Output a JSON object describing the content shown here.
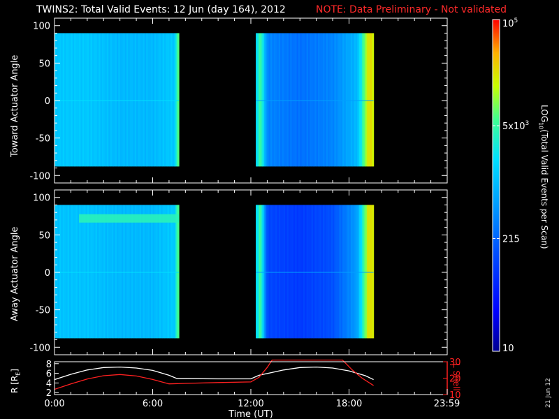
{
  "title": {
    "main": "TWINS2: Total Valid Events: 12 Jun (day 164), 2012",
    "note": "NOTE: Data Preliminary - Not validated"
  },
  "colors": {
    "background": "#000000",
    "axes": "#ffffff",
    "note": "#ff2a2a",
    "lshell": "#ff2020",
    "radius": "#ffffff"
  },
  "chart_data": [
    {
      "type": "heatmap",
      "panel": "top",
      "ylabel": "Toward Actuator Angle",
      "ylim": [
        -110,
        110
      ],
      "yticks": [
        -100,
        -50,
        0,
        50,
        100
      ],
      "xlim": [
        0,
        24
      ],
      "data_segments": [
        [
          0,
          7.6
        ],
        [
          12.3,
          19.5
        ]
      ],
      "data_angle_range": [
        -88,
        90
      ],
      "level_profile": [
        {
          "t": 0.0,
          "level": 0.53
        },
        {
          "t": 2.0,
          "level": 0.53
        },
        {
          "t": 4.0,
          "level": 0.5
        },
        {
          "t": 6.0,
          "level": 0.5
        },
        {
          "t": 7.4,
          "level": 0.54
        },
        {
          "t": 7.5,
          "level": 0.72
        },
        {
          "t": 12.3,
          "level": 0.55
        },
        {
          "t": 12.6,
          "level": 0.7
        },
        {
          "t": 13.0,
          "level": 0.4
        },
        {
          "t": 15.0,
          "level": 0.36
        },
        {
          "t": 17.0,
          "level": 0.4
        },
        {
          "t": 18.5,
          "level": 0.5
        },
        {
          "t": 19.2,
          "level": 0.85
        },
        {
          "t": 19.5,
          "level": 0.82
        }
      ]
    },
    {
      "type": "heatmap",
      "panel": "middle",
      "ylabel": "Away Actuator Angle",
      "ylim": [
        -110,
        110
      ],
      "yticks": [
        -100,
        -50,
        0,
        50,
        100
      ],
      "xlim": [
        0,
        24
      ],
      "data_segments": [
        [
          0,
          7.6
        ],
        [
          12.3,
          19.5
        ]
      ],
      "data_angle_range": [
        -88,
        90
      ],
      "level_profile": [
        {
          "t": 0.0,
          "level": 0.52
        },
        {
          "t": 2.0,
          "level": 0.52
        },
        {
          "t": 4.0,
          "level": 0.5
        },
        {
          "t": 6.0,
          "level": 0.5
        },
        {
          "t": 7.4,
          "level": 0.54
        },
        {
          "t": 7.5,
          "level": 0.72
        },
        {
          "t": 12.3,
          "level": 0.55
        },
        {
          "t": 12.6,
          "level": 0.7
        },
        {
          "t": 13.0,
          "level": 0.28
        },
        {
          "t": 15.0,
          "level": 0.25
        },
        {
          "t": 17.0,
          "level": 0.3
        },
        {
          "t": 18.5,
          "level": 0.45
        },
        {
          "t": 19.2,
          "level": 0.85
        },
        {
          "t": 19.5,
          "level": 0.82
        }
      ],
      "band_feature": {
        "angle": 72,
        "t_range": [
          1.5,
          7.6
        ],
        "level": 0.66
      }
    },
    {
      "type": "line",
      "panel": "bottom",
      "xlabel": "Time (UT)",
      "x_ticks": [
        "0:00",
        "6:00",
        "12:00",
        "18:00",
        "23:59"
      ],
      "x_tick_values": [
        0,
        6,
        12,
        18,
        23.98
      ],
      "xlim": [
        0,
        24
      ],
      "ylabel_left": "R [RE]",
      "ylim_left": [
        1.6,
        8.4
      ],
      "yticks_left": [
        2,
        4,
        6,
        8
      ],
      "ylabel_right": "L Shell",
      "ylim_right": [
        10,
        30
      ],
      "yticks_right": [
        10,
        20,
        30
      ],
      "series": [
        {
          "axis": "left",
          "x": [
            0,
            1,
            2,
            3,
            4,
            5,
            6,
            7,
            7.5,
            8,
            10,
            12,
            12.5,
            14,
            15,
            16,
            17,
            18,
            19,
            19.5
          ],
          "y": [
            4.7,
            5.8,
            6.7,
            7.2,
            7.3,
            7.1,
            6.6,
            5.6,
            4.9,
            4.9,
            4.85,
            4.85,
            5.6,
            6.7,
            7.2,
            7.3,
            7.1,
            6.5,
            5.5,
            4.7
          ]
        },
        {
          "axis": "right",
          "x": [
            0,
            1,
            2,
            3,
            4,
            5,
            6,
            7,
            8,
            10,
            12,
            12.5,
            13,
            13.3,
            17.6,
            18.2,
            18.8,
            19.5
          ],
          "y": [
            13.2,
            16.5,
            19.5,
            21.5,
            22.2,
            21.3,
            19.2,
            16.5,
            16.8,
            17.3,
            17.7,
            20.5,
            26.5,
            31,
            31,
            25,
            20,
            15.5
          ]
        }
      ]
    }
  ],
  "colorbar": {
    "label": "LOG10(Total Valid Events per Scan)",
    "label_base": "LOG",
    "label_sub": "10",
    "label_rest": "(Total Valid Events per Scan)",
    "ticks": [
      {
        "text": "10",
        "level": 0.0
      },
      {
        "text": "215",
        "level": 0.34
      },
      {
        "text": "5x10",
        "exp": "3",
        "level": 0.68
      },
      {
        "text": "10",
        "exp": "5",
        "level": 1.0
      }
    ]
  },
  "date_stamp": "21 Jun 12",
  "re_sub": "E"
}
